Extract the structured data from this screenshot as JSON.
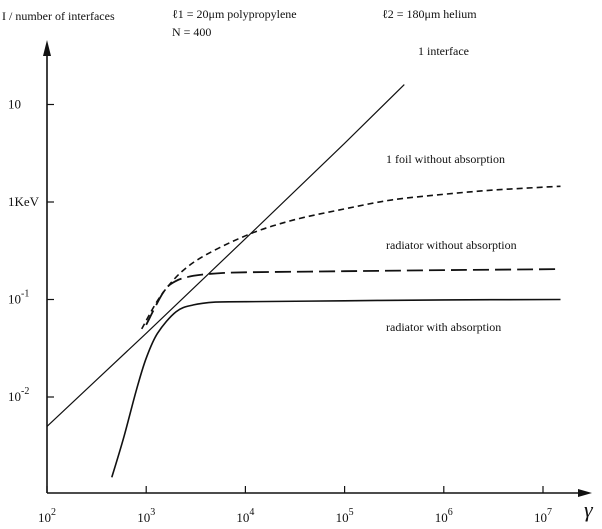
{
  "header": {
    "left_label": "I / number of interfaces",
    "mid_label": "ℓ1 = 20μm polypropylene",
    "n_label": "N = 400",
    "right_label": "ℓ2 = 180μm helium"
  },
  "chart_data": {
    "type": "line",
    "xlabel": "γ",
    "ylabel": "",
    "x_scale": "log",
    "y_scale": "log",
    "xlim": [
      100,
      15000000
    ],
    "ylim": [
      0.0015,
      50
    ],
    "x_ticks": [
      {
        "value": 100,
        "base": "10",
        "exp": "2"
      },
      {
        "value": 1000,
        "base": "10",
        "exp": "3"
      },
      {
        "value": 10000,
        "base": "10",
        "exp": "4"
      },
      {
        "value": 100000,
        "base": "10",
        "exp": "5"
      },
      {
        "value": 1000000,
        "base": "10",
        "exp": "6"
      },
      {
        "value": 10000000,
        "base": "10",
        "exp": "7"
      }
    ],
    "y_ticks": [
      {
        "value": 0.01,
        "base": "10",
        "exp": "-2"
      },
      {
        "value": 0.1,
        "base": "10",
        "exp": "-1"
      },
      {
        "value": 1,
        "base": "1KeV",
        "exp": ""
      },
      {
        "value": 10,
        "base": "10",
        "exp": ""
      }
    ],
    "grid": false,
    "series": [
      {
        "name": "1 interface",
        "style": "solid-thin",
        "x": [
          100,
          1000,
          10000,
          100000,
          400000
        ],
        "y": [
          0.005,
          0.045,
          0.42,
          4.0,
          16.0
        ]
      },
      {
        "name": "1 foil without absorption",
        "style": "short-dash",
        "x": [
          900,
          1500,
          3000,
          10000,
          30000,
          100000,
          300000,
          1000000,
          3000000,
          10000000,
          15000000
        ],
        "y": [
          0.05,
          0.12,
          0.24,
          0.45,
          0.65,
          0.85,
          1.05,
          1.2,
          1.32,
          1.42,
          1.45
        ]
      },
      {
        "name": "radiator without absorption",
        "style": "long-dash",
        "x": [
          1000,
          1500,
          2000,
          3000,
          5000,
          10000,
          100000,
          1000000,
          15000000
        ],
        "y": [
          0.055,
          0.12,
          0.155,
          0.175,
          0.185,
          0.19,
          0.195,
          0.2,
          0.205
        ]
      },
      {
        "name": "radiator with absorption",
        "style": "solid",
        "x": [
          450,
          600,
          800,
          1000,
          1300,
          2000,
          3000,
          5000,
          10000,
          100000,
          1000000,
          15000000
        ],
        "y": [
          0.0015,
          0.004,
          0.012,
          0.025,
          0.045,
          0.075,
          0.088,
          0.094,
          0.095,
          0.097,
          0.099,
          0.1
        ]
      }
    ]
  }
}
